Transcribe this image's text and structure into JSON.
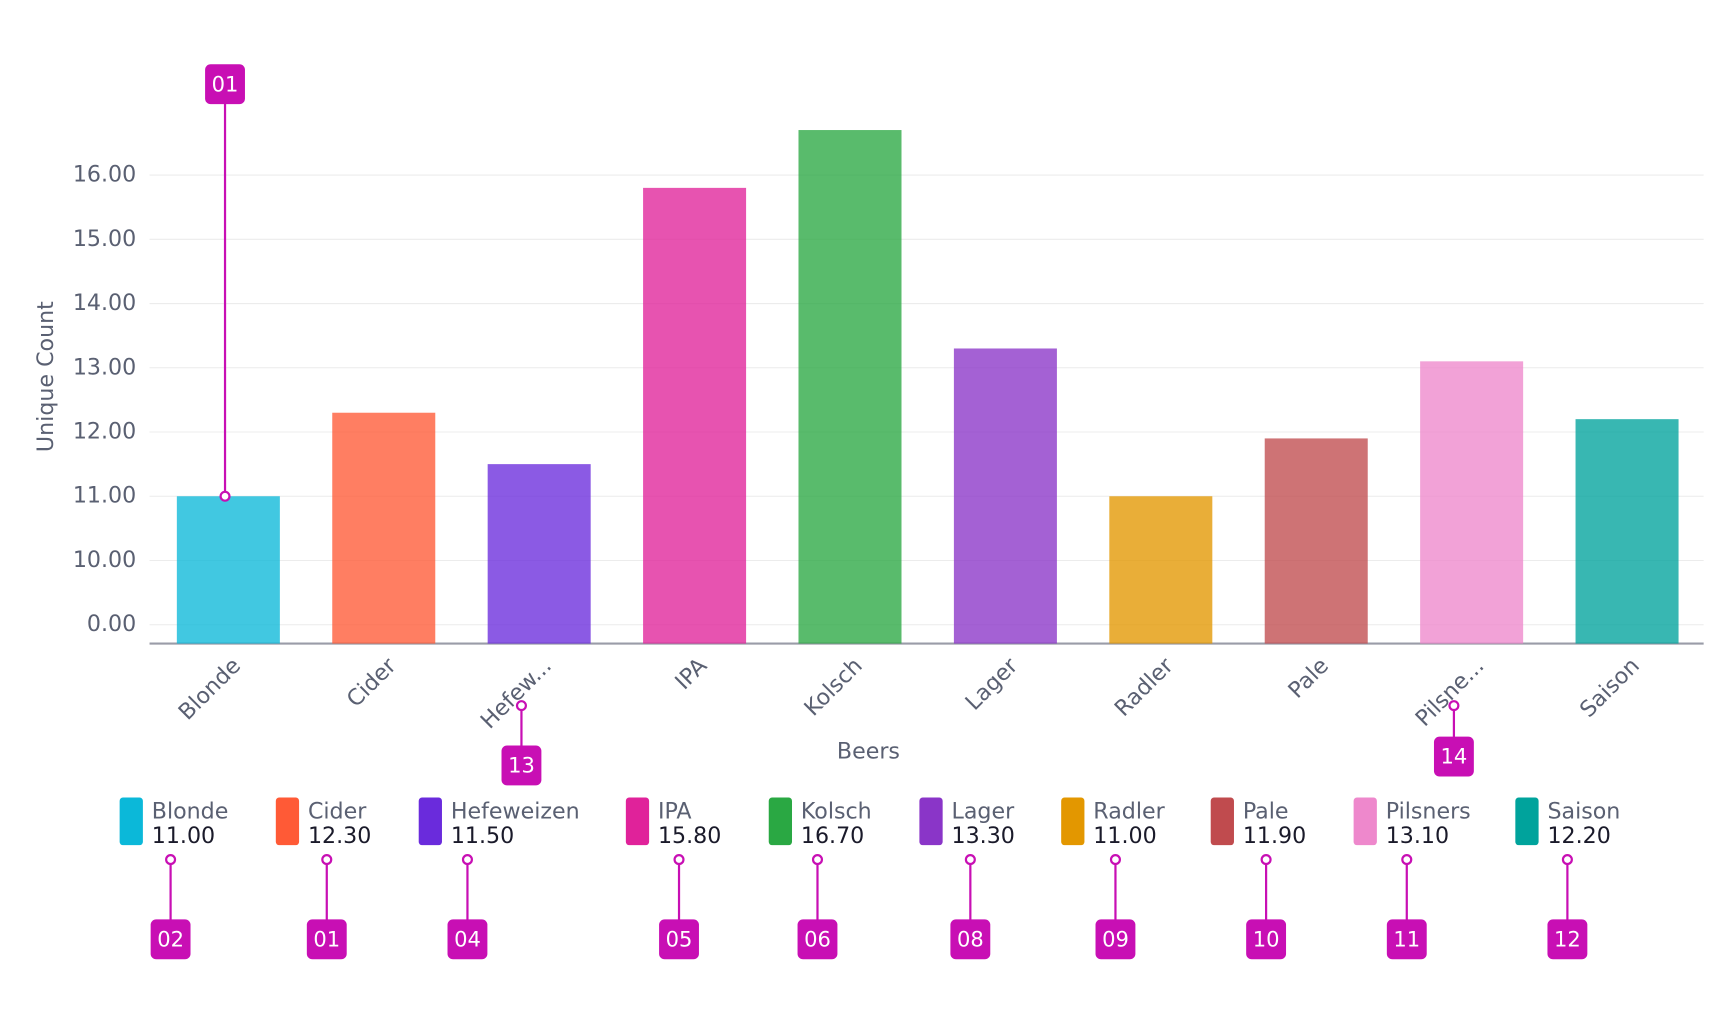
{
  "chart_data": {
    "type": "bar",
    "x_label": "Beers",
    "y_label": "Unique Count",
    "categories": [
      "Blonde",
      "Cider",
      "Hefew...",
      "IPA",
      "Kolsch",
      "Lager",
      "Radler",
      "Pale",
      "Pilsne...",
      "Saison"
    ],
    "legend_labels": [
      "Blonde",
      "Cider",
      "Hefeweizen",
      "IPA",
      "Kolsch",
      "Lager",
      "Radler",
      "Pale",
      "Pilsners",
      "Saison"
    ],
    "values": [
      11.0,
      12.3,
      11.5,
      15.8,
      16.7,
      13.3,
      11.0,
      11.9,
      13.1,
      12.2
    ],
    "value_labels": [
      "11.00",
      "12.30",
      "11.50",
      "15.80",
      "16.70",
      "13.30",
      "11.00",
      "11.90",
      "13.10",
      "12.20"
    ],
    "colors": [
      "#0bb8d9",
      "#ff5a36",
      "#6a2bdc",
      "#e0229a",
      "#2aa843",
      "#8a35c8",
      "#e39700",
      "#c04b4e",
      "#ee88cc",
      "#00a39c"
    ],
    "yticks": [
      {
        "value": 0,
        "label": "0.00"
      },
      {
        "value": 10,
        "label": "10.00"
      },
      {
        "value": 11,
        "label": "11.00"
      },
      {
        "value": 12,
        "label": "12.00"
      },
      {
        "value": 13,
        "label": "13.00"
      },
      {
        "value": 14,
        "label": "14.00"
      },
      {
        "value": 15,
        "label": "15.00"
      },
      {
        "value": 16,
        "label": "16.00"
      }
    ],
    "grid": true,
    "bar_annotations": [
      "01",
      null,
      null,
      null,
      null,
      null,
      null,
      null,
      null,
      null
    ],
    "tick_annotations": [
      null,
      null,
      "13",
      null,
      null,
      null,
      null,
      null,
      "14",
      null
    ],
    "legend_annotations": [
      "02",
      "01",
      "04",
      "05",
      "06",
      "08",
      "09",
      "10",
      "11",
      "12"
    ]
  }
}
